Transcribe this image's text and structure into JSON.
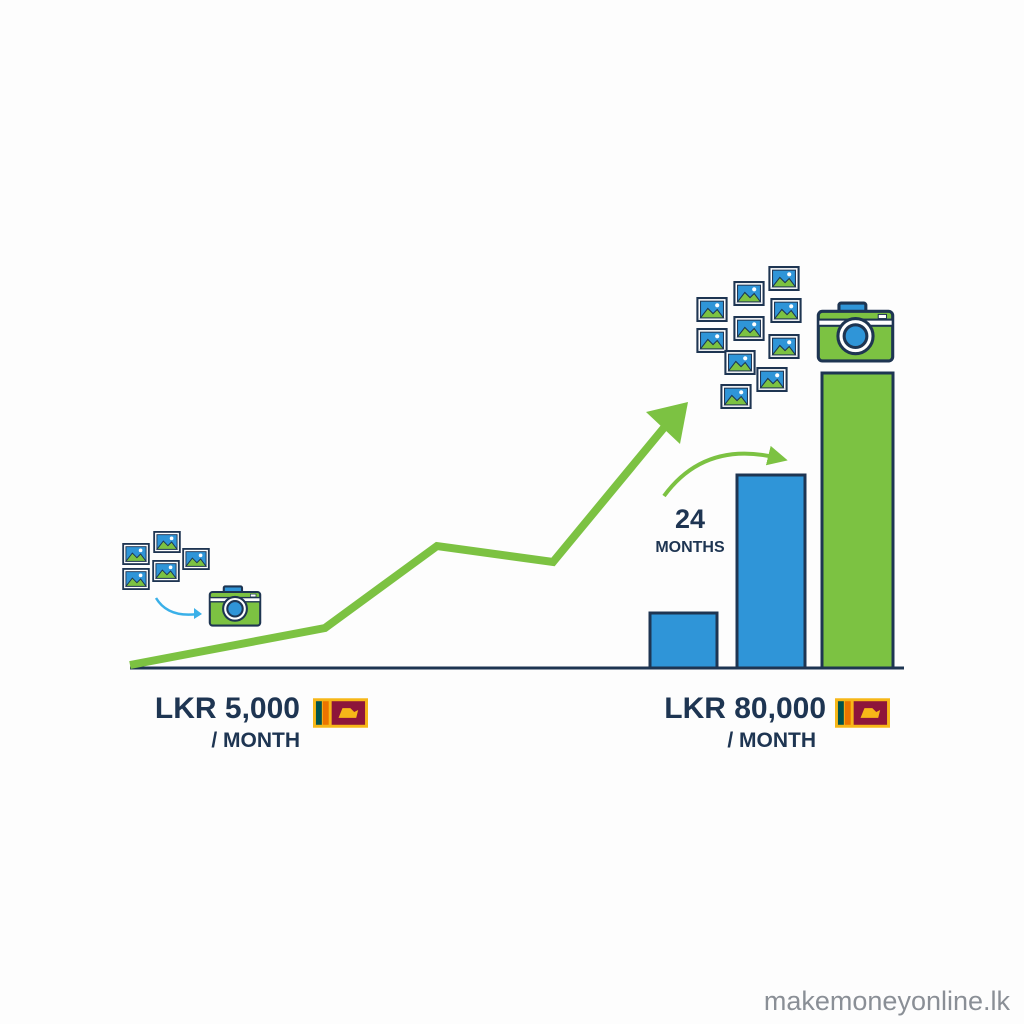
{
  "start": {
    "amount": "LKR 5,000",
    "unit": "/ MONTH"
  },
  "duration": {
    "number": "24",
    "unit": "MONTHS"
  },
  "end": {
    "amount": "LKR 80,000",
    "unit": "/ MONTH"
  },
  "footer": {
    "watermark": "makemoneyonline.lk"
  }
}
